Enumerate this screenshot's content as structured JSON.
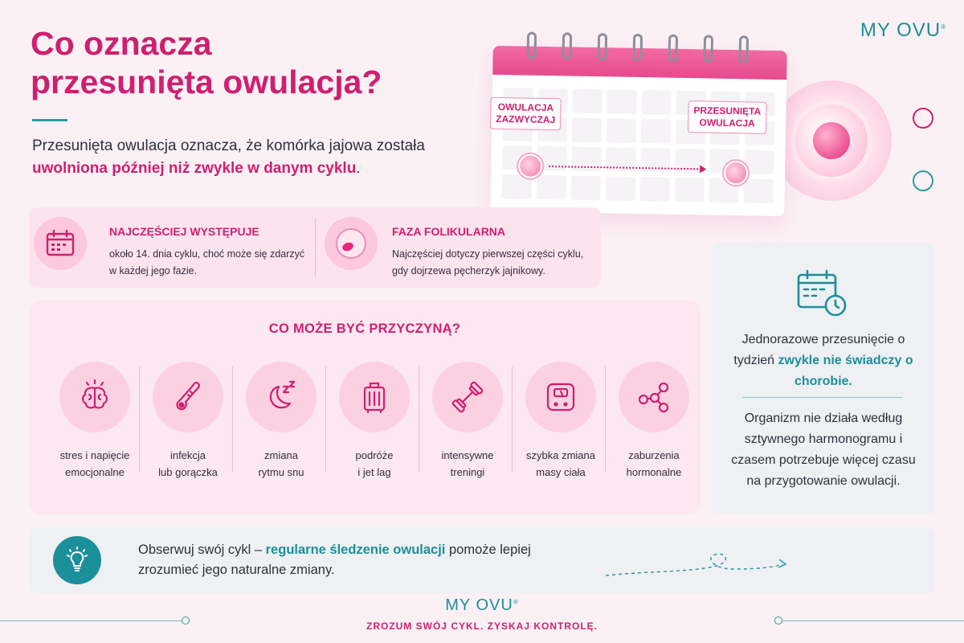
{
  "header": {
    "title_line1": "Co oznacza",
    "title_line2": "przesunięta owulacja?",
    "intro_plain": "Przesunięta owulacja oznacza, że komórka jajowa została",
    "intro_highlight": "uwolniona później niż zwykle w danym cyklu",
    "intro_end": "."
  },
  "brand": {
    "name": "MY OVU",
    "mark": "®"
  },
  "calendar": {
    "label_usual_line1": "OWULACJA",
    "label_usual_line2": "ZAZWYCZAJ",
    "label_shifted_line1": "PRZESUNIĘTA",
    "label_shifted_line2": "OWULACJA"
  },
  "info": {
    "item1_title": "NAJCZĘŚCIEJ WYSTĘPUJE",
    "item1_text": "około 14. dnia cyklu, choć może się zdarzyć w każdej jego fazie.",
    "item2_title": "FAZA FOLIKULARNA",
    "item2_text": "Najczęściej dotyczy pierwszej części cyklu, gdy dojrzewa pęcherzyk jajnikowy."
  },
  "causes": {
    "title": "CO MOŻE BYĆ PRZYCZYNĄ?",
    "items": [
      {
        "icon": "brain-icon",
        "line1": "stres i napięcie",
        "line2": "emocjonalne"
      },
      {
        "icon": "thermometer-icon",
        "line1": "infekcja",
        "line2": "lub gorączka"
      },
      {
        "icon": "moon-sleep-icon",
        "line1": "zmiana",
        "line2": "rytmu snu"
      },
      {
        "icon": "suitcase-icon",
        "line1": "podróże",
        "line2": "i jet lag"
      },
      {
        "icon": "dumbbell-icon",
        "line1": "intensywne",
        "line2": "treningi"
      },
      {
        "icon": "scale-icon",
        "line1": "szybka zmiana",
        "line2": "masy ciała"
      },
      {
        "icon": "molecule-icon",
        "line1": "zaburzenia",
        "line2": "hormonalne"
      }
    ]
  },
  "side": {
    "text1_plain": "Jednorazowe przesunięcie o tydzień",
    "text1_highlight": "zwykle nie świadczy o chorobie.",
    "text2": "Organizm nie działa według sztywnego harmonogramu i czasem potrzebuje więcej czasu na przygotowanie owulacji."
  },
  "tip": {
    "text_start": "Obserwuj swój cykl –",
    "text_highlight": "regularne śledzenie owulacji",
    "text_end": "pomoże lepiej zrozumieć jego naturalne zmiany."
  },
  "footer": {
    "tagline": "ZROZUM SWÓJ CYKL. ZYSKAJ KONTROLĘ."
  },
  "colors": {
    "primary_pink": "#cf1f70",
    "accent_teal": "#1b8f9a",
    "background": "#fbf1f5"
  }
}
